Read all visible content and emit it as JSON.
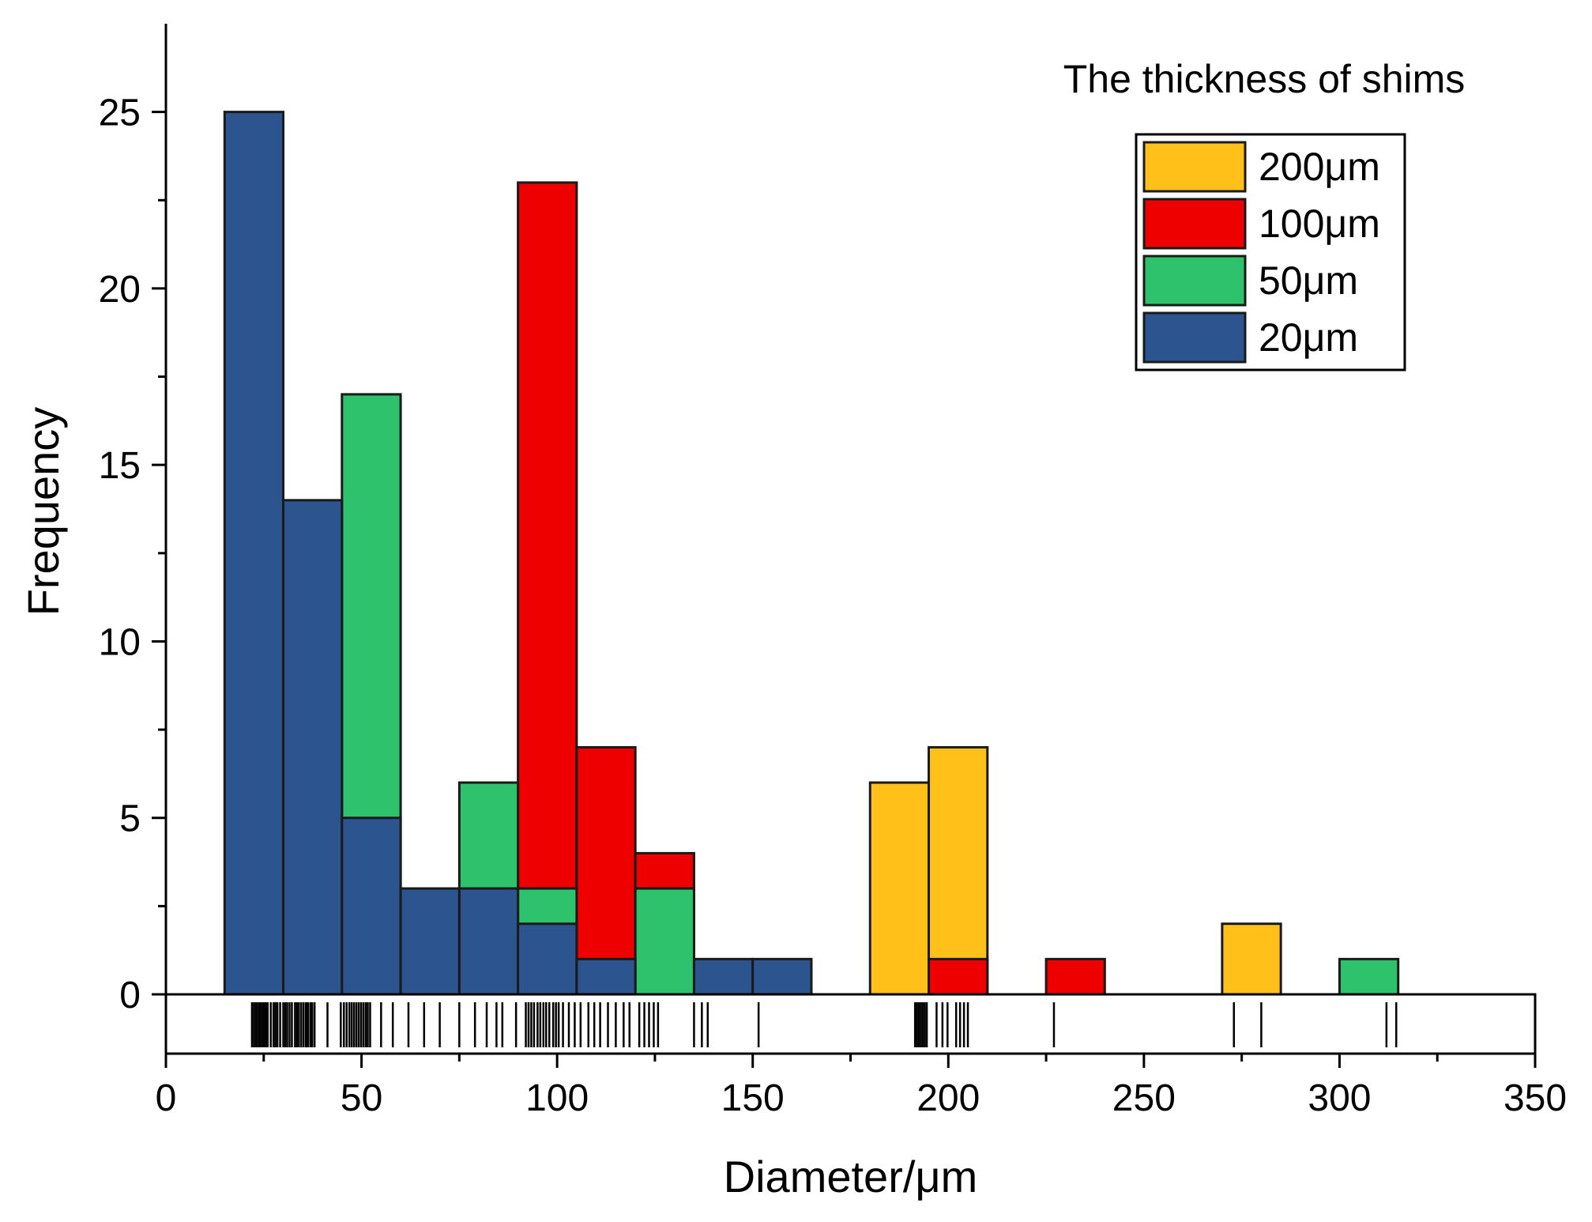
{
  "chart_data": {
    "type": "bar",
    "title": "",
    "xlabel": "Diameter/μm",
    "ylabel": "Frequency",
    "xlim": [
      0,
      350
    ],
    "ylim": [
      0,
      27.5
    ],
    "x_ticks": [
      "0",
      "50",
      "100",
      "150",
      "200",
      "250",
      "300",
      "350"
    ],
    "y_ticks": [
      "0",
      "5",
      "10",
      "15",
      "20",
      "25"
    ],
    "bin_width": 15,
    "grid": false,
    "legend_title": "The thickness of shims",
    "legend_position": "top-right",
    "series": [
      {
        "name": "20μm",
        "color": "#2C5590",
        "bins": [
          {
            "x0": 15,
            "x1": 30,
            "value": 25
          },
          {
            "x0": 30,
            "x1": 45,
            "value": 14
          },
          {
            "x0": 45,
            "x1": 60,
            "value": 5
          },
          {
            "x0": 60,
            "x1": 75,
            "value": 3
          },
          {
            "x0": 75,
            "x1": 90,
            "value": 3
          },
          {
            "x0": 90,
            "x1": 105,
            "value": 2
          },
          {
            "x0": 105,
            "x1": 120,
            "value": 1
          },
          {
            "x0": 135,
            "x1": 150,
            "value": 1
          },
          {
            "x0": 150,
            "x1": 165,
            "value": 1
          }
        ]
      },
      {
        "name": "50μm",
        "color": "#2DC26B",
        "bins": [
          {
            "x0": 45,
            "x1": 60,
            "value": 17
          },
          {
            "x0": 75,
            "x1": 90,
            "value": 6
          },
          {
            "x0": 90,
            "x1": 105,
            "value": 3
          },
          {
            "x0": 120,
            "x1": 135,
            "value": 3
          },
          {
            "x0": 300,
            "x1": 315,
            "value": 1
          }
        ]
      },
      {
        "name": "100μm",
        "color": "#EE0000",
        "bins": [
          {
            "x0": 90,
            "x1": 105,
            "value": 23
          },
          {
            "x0": 105,
            "x1": 120,
            "value": 7
          },
          {
            "x0": 120,
            "x1": 135,
            "value": 4
          },
          {
            "x0": 195,
            "x1": 210,
            "value": 1
          },
          {
            "x0": 225,
            "x1": 240,
            "value": 1
          }
        ]
      },
      {
        "name": "200μm",
        "color": "#FFC01A",
        "bins": [
          {
            "x0": 180,
            "x1": 195,
            "value": 6
          },
          {
            "x0": 195,
            "x1": 210,
            "value": 7
          },
          {
            "x0": 270,
            "x1": 285,
            "value": 2
          }
        ]
      }
    ],
    "draw_order": [
      "200μm",
      "100μm",
      "50μm",
      "20μm"
    ],
    "legend_order": [
      "200μm",
      "100μm",
      "50μm",
      "20μm"
    ],
    "rug_values": [
      22,
      22.5,
      23,
      23.5,
      24,
      24.5,
      25,
      25.5,
      26,
      26.8,
      27.5,
      28,
      28.5,
      29.2,
      30,
      30.5,
      31,
      31.6,
      32.2,
      33,
      33.5,
      34,
      34.6,
      35.2,
      35.8,
      36.3,
      36.9,
      37.4,
      38,
      41.3,
      44.7,
      45.5,
      46.2,
      46.9,
      47.5,
      48.1,
      48.7,
      49.3,
      49.9,
      50.5,
      51.1,
      51.6,
      52.2,
      55,
      58,
      62,
      66,
      70,
      75,
      79,
      82,
      84.5,
      86,
      89.5,
      92,
      92.7,
      93.4,
      94.1,
      95,
      95.7,
      96.5,
      97.2,
      98,
      99,
      99.7,
      100.4,
      101.5,
      103,
      104.5,
      106,
      108,
      109.5,
      111,
      113,
      115,
      117,
      118.5,
      121,
      122.3,
      123.5,
      124.7,
      125.8,
      135,
      137,
      138.5,
      151.5,
      191.5,
      192,
      192.5,
      193,
      193.5,
      194,
      194.5,
      197,
      198.5,
      199.8,
      202,
      203,
      204,
      205,
      227,
      273,
      280,
      312,
      314.5
    ],
    "rug_color": "#000000"
  }
}
